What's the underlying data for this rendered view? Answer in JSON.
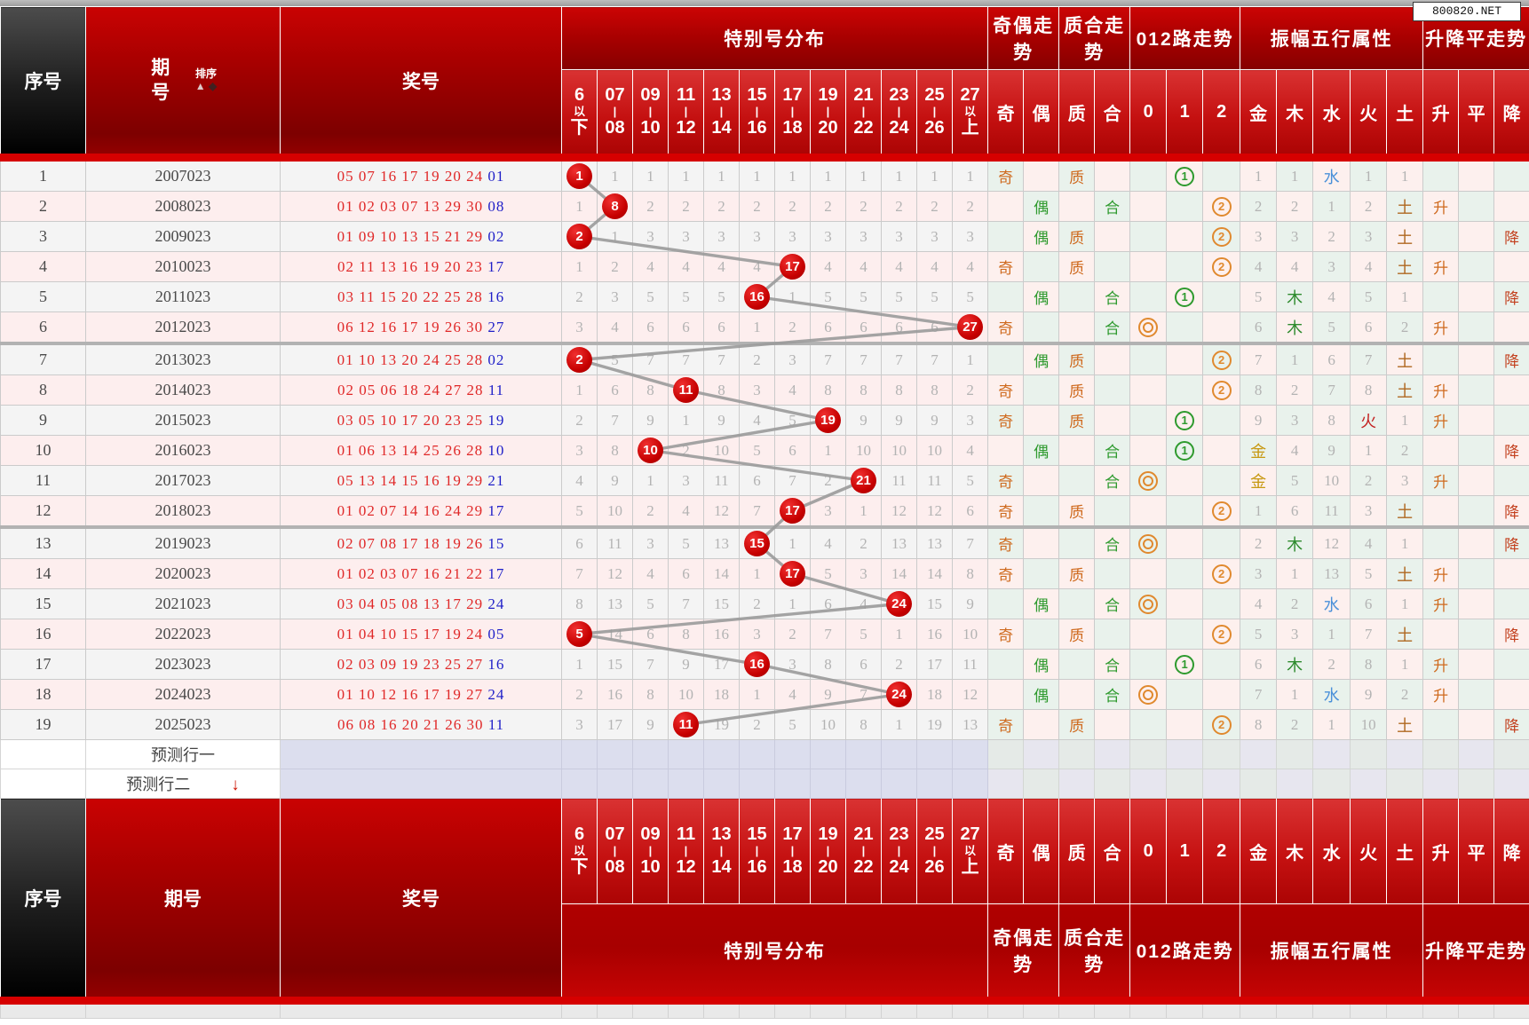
{
  "watermark": "800820.NET",
  "header": {
    "seq": "序号",
    "period": "期号",
    "prize": "奖号",
    "sort": "排序",
    "sort_up": "▲",
    "sort_down": "◆",
    "pred_arrow": "↓",
    "groups": {
      "dist": "特别号分布",
      "oe": "奇偶走势",
      "pc": "质合走势",
      "route": "012路走势",
      "five": "振幅五行属性",
      "ud": "升降平走势"
    },
    "dist_cols": [
      [
        "6",
        "以",
        "下"
      ],
      [
        "07",
        "|",
        "08"
      ],
      [
        "09",
        "|",
        "10"
      ],
      [
        "11",
        "|",
        "12"
      ],
      [
        "13",
        "|",
        "14"
      ],
      [
        "15",
        "|",
        "16"
      ],
      [
        "17",
        "|",
        "18"
      ],
      [
        "19",
        "|",
        "20"
      ],
      [
        "21",
        "|",
        "22"
      ],
      [
        "23",
        "|",
        "24"
      ],
      [
        "25",
        "|",
        "26"
      ],
      [
        "27",
        "以",
        "上"
      ]
    ],
    "trend_cols": [
      "奇",
      "偶",
      "质",
      "合",
      "0",
      "1",
      "2",
      "金",
      "木",
      "水",
      "火",
      "土",
      "升",
      "平",
      "降"
    ]
  },
  "pred_rows": [
    "预测行一",
    "预测行二"
  ],
  "colors": {
    "odd_row": "#f4f4f4",
    "even_row": "#fdeeee",
    "mint": "#e9f2ec",
    "pink": "#fdf0ee",
    "orange": "#cf6a1e",
    "green": "#2e9a2e",
    "down_red": "#c3401e",
    "gold": "#c79810",
    "wood": "#2e8b2e",
    "water": "#4a90d9",
    "fire": "#c32222",
    "earth": "#b06820",
    "ball_red": "#c60000",
    "special_blue": "#1f1fc8",
    "prize_red": "#e02828",
    "line_gray": "#9a9a9a"
  },
  "rows": [
    {
      "no": "1",
      "period": "2007023",
      "reds": "05 07 16 17 19 20 24",
      "special": "01",
      "ball": {
        "col": 0,
        "num": "1"
      },
      "miss": [
        "",
        "1",
        "1",
        "1",
        "1",
        "1",
        "1",
        "1",
        "1",
        "1",
        "1",
        "1"
      ],
      "oe": "奇",
      "pc": "质",
      "route": {
        "col": 1,
        "sym": "1"
      },
      "five": [
        "1",
        "1",
        "水",
        "1",
        "1"
      ],
      "ud": ""
    },
    {
      "no": "2",
      "period": "2008023",
      "reds": "01 02 03 07 13 29 30",
      "special": "08",
      "ball": {
        "col": 1,
        "num": "8"
      },
      "miss": [
        "1",
        "",
        "2",
        "2",
        "2",
        "2",
        "2",
        "2",
        "2",
        "2",
        "2",
        "2"
      ],
      "oe": "偶",
      "pc": "合",
      "route": {
        "col": 2,
        "sym": "2"
      },
      "five": [
        "2",
        "2",
        "1",
        "2",
        "土"
      ],
      "ud": "升"
    },
    {
      "no": "3",
      "period": "2009023",
      "reds": "01 09 10 13 15 21 29",
      "special": "02",
      "ball": {
        "col": 0,
        "num": "2"
      },
      "miss": [
        "",
        "1",
        "3",
        "3",
        "3",
        "3",
        "3",
        "3",
        "3",
        "3",
        "3",
        "3"
      ],
      "oe": "偶",
      "pc": "质",
      "route": {
        "col": 2,
        "sym": "2"
      },
      "five": [
        "3",
        "3",
        "2",
        "3",
        "土"
      ],
      "ud": "降"
    },
    {
      "no": "4",
      "period": "2010023",
      "reds": "02 11 13 16 19 20 23",
      "special": "17",
      "ball": {
        "col": 6,
        "num": "17"
      },
      "miss": [
        "1",
        "2",
        "4",
        "4",
        "4",
        "4",
        "",
        "4",
        "4",
        "4",
        "4",
        "4"
      ],
      "oe": "奇",
      "pc": "质",
      "route": {
        "col": 2,
        "sym": "2"
      },
      "five": [
        "4",
        "4",
        "3",
        "4",
        "土"
      ],
      "ud": "升"
    },
    {
      "no": "5",
      "period": "2011023",
      "reds": "03 11 15 20 22 25 28",
      "special": "16",
      "ball": {
        "col": 5,
        "num": "16"
      },
      "miss": [
        "2",
        "3",
        "5",
        "5",
        "5",
        "",
        "1",
        "5",
        "5",
        "5",
        "5",
        "5"
      ],
      "oe": "偶",
      "pc": "合",
      "route": {
        "col": 1,
        "sym": "1"
      },
      "five": [
        "5",
        "木",
        "4",
        "5",
        "1"
      ],
      "ud": "降"
    },
    {
      "no": "6",
      "period": "2012023",
      "reds": "06 12 16 17 19 26 30",
      "special": "27",
      "ball": {
        "col": 11,
        "num": "27"
      },
      "miss": [
        "3",
        "4",
        "6",
        "6",
        "6",
        "1",
        "2",
        "6",
        "6",
        "6",
        "6",
        ""
      ],
      "oe": "奇",
      "pc": "合",
      "route": {
        "col": 0,
        "sym": "0"
      },
      "five": [
        "6",
        "木",
        "5",
        "6",
        "2"
      ],
      "ud": "升"
    },
    {
      "no": "7",
      "period": "2013023",
      "reds": "01 10 13 20 24 25 28",
      "special": "02",
      "ball": {
        "col": 0,
        "num": "2"
      },
      "miss": [
        "",
        "5",
        "7",
        "7",
        "7",
        "2",
        "3",
        "7",
        "7",
        "7",
        "7",
        "1"
      ],
      "oe": "偶",
      "pc": "质",
      "route": {
        "col": 2,
        "sym": "2"
      },
      "five": [
        "7",
        "1",
        "6",
        "7",
        "土"
      ],
      "ud": "降"
    },
    {
      "no": "8",
      "period": "2014023",
      "reds": "02 05 06 18 24 27 28",
      "special": "11",
      "ball": {
        "col": 3,
        "num": "11"
      },
      "miss": [
        "1",
        "6",
        "8",
        "",
        "8",
        "3",
        "4",
        "8",
        "8",
        "8",
        "8",
        "2"
      ],
      "oe": "奇",
      "pc": "质",
      "route": {
        "col": 2,
        "sym": "2"
      },
      "five": [
        "8",
        "2",
        "7",
        "8",
        "土"
      ],
      "ud": "升"
    },
    {
      "no": "9",
      "period": "2015023",
      "reds": "03 05 10 17 20 23 25",
      "special": "19",
      "ball": {
        "col": 7,
        "num": "19"
      },
      "miss": [
        "2",
        "7",
        "9",
        "1",
        "9",
        "4",
        "5",
        "",
        "9",
        "9",
        "9",
        "3"
      ],
      "oe": "奇",
      "pc": "质",
      "route": {
        "col": 1,
        "sym": "1"
      },
      "five": [
        "9",
        "3",
        "8",
        "火",
        "1"
      ],
      "ud": "升"
    },
    {
      "no": "10",
      "period": "2016023",
      "reds": "01 06 13 14 25 26 28",
      "special": "10",
      "ball": {
        "col": 2,
        "num": "10"
      },
      "miss": [
        "3",
        "8",
        "",
        "2",
        "10",
        "5",
        "6",
        "1",
        "10",
        "10",
        "10",
        "4"
      ],
      "oe": "偶",
      "pc": "合",
      "route": {
        "col": 1,
        "sym": "1"
      },
      "five": [
        "金",
        "4",
        "9",
        "1",
        "2"
      ],
      "ud": "降"
    },
    {
      "no": "11",
      "period": "2017023",
      "reds": "05 13 14 15 16 19 29",
      "special": "21",
      "ball": {
        "col": 8,
        "num": "21"
      },
      "miss": [
        "4",
        "9",
        "1",
        "3",
        "11",
        "6",
        "7",
        "2",
        "",
        "11",
        "11",
        "5"
      ],
      "oe": "奇",
      "pc": "合",
      "route": {
        "col": 0,
        "sym": "0"
      },
      "five": [
        "金",
        "5",
        "10",
        "2",
        "3"
      ],
      "ud": "升"
    },
    {
      "no": "12",
      "period": "2018023",
      "reds": "01 02 07 14 16 24 29",
      "special": "17",
      "ball": {
        "col": 6,
        "num": "17"
      },
      "miss": [
        "5",
        "10",
        "2",
        "4",
        "12",
        "7",
        "",
        "3",
        "1",
        "12",
        "12",
        "6"
      ],
      "oe": "奇",
      "pc": "质",
      "route": {
        "col": 2,
        "sym": "2"
      },
      "five": [
        "1",
        "6",
        "11",
        "3",
        "土"
      ],
      "ud": "降"
    },
    {
      "no": "13",
      "period": "2019023",
      "reds": "02 07 08 17 18 19 26",
      "special": "15",
      "ball": {
        "col": 5,
        "num": "15"
      },
      "miss": [
        "6",
        "11",
        "3",
        "5",
        "13",
        "",
        "1",
        "4",
        "2",
        "13",
        "13",
        "7"
      ],
      "oe": "奇",
      "pc": "合",
      "route": {
        "col": 0,
        "sym": "0"
      },
      "five": [
        "2",
        "木",
        "12",
        "4",
        "1"
      ],
      "ud": "降"
    },
    {
      "no": "14",
      "period": "2020023",
      "reds": "01 02 03 07 16 21 22",
      "special": "17",
      "ball": {
        "col": 6,
        "num": "17"
      },
      "miss": [
        "7",
        "12",
        "4",
        "6",
        "14",
        "1",
        "",
        "5",
        "3",
        "14",
        "14",
        "8"
      ],
      "oe": "奇",
      "pc": "质",
      "route": {
        "col": 2,
        "sym": "2"
      },
      "five": [
        "3",
        "1",
        "13",
        "5",
        "土"
      ],
      "ud": "升"
    },
    {
      "no": "15",
      "period": "2021023",
      "reds": "03 04 05 08 13 17 29",
      "special": "24",
      "ball": {
        "col": 9,
        "num": "24"
      },
      "miss": [
        "8",
        "13",
        "5",
        "7",
        "15",
        "2",
        "1",
        "6",
        "4",
        "",
        "15",
        "9"
      ],
      "oe": "偶",
      "pc": "合",
      "route": {
        "col": 0,
        "sym": "0"
      },
      "five": [
        "4",
        "2",
        "水",
        "6",
        "1"
      ],
      "ud": "升"
    },
    {
      "no": "16",
      "period": "2022023",
      "reds": "01 04 10 15 17 19 24",
      "special": "05",
      "ball": {
        "col": 0,
        "num": "5"
      },
      "miss": [
        "",
        "14",
        "6",
        "8",
        "16",
        "3",
        "2",
        "7",
        "5",
        "1",
        "16",
        "10"
      ],
      "oe": "奇",
      "pc": "质",
      "route": {
        "col": 2,
        "sym": "2"
      },
      "five": [
        "5",
        "3",
        "1",
        "7",
        "土"
      ],
      "ud": "降"
    },
    {
      "no": "17",
      "period": "2023023",
      "reds": "02 03 09 19 23 25 27",
      "special": "16",
      "ball": {
        "col": 5,
        "num": "16"
      },
      "miss": [
        "1",
        "15",
        "7",
        "9",
        "17",
        "",
        "3",
        "8",
        "6",
        "2",
        "17",
        "11"
      ],
      "oe": "偶",
      "pc": "合",
      "route": {
        "col": 1,
        "sym": "1"
      },
      "five": [
        "6",
        "木",
        "2",
        "8",
        "1"
      ],
      "ud": "升"
    },
    {
      "no": "18",
      "period": "2024023",
      "reds": "01 10 12 16 17 19 27",
      "special": "24",
      "ball": {
        "col": 9,
        "num": "24"
      },
      "miss": [
        "2",
        "16",
        "8",
        "10",
        "18",
        "1",
        "4",
        "9",
        "7",
        "",
        "18",
        "12"
      ],
      "oe": "偶",
      "pc": "合",
      "route": {
        "col": 0,
        "sym": "0"
      },
      "five": [
        "7",
        "1",
        "水",
        "9",
        "2"
      ],
      "ud": "升"
    },
    {
      "no": "19",
      "period": "2025023",
      "reds": "06 08 16 20 21 26 30",
      "special": "11",
      "ball": {
        "col": 3,
        "num": "11"
      },
      "miss": [
        "3",
        "17",
        "9",
        "",
        "19",
        "2",
        "5",
        "10",
        "8",
        "1",
        "19",
        "13"
      ],
      "oe": "奇",
      "pc": "质",
      "route": {
        "col": 2,
        "sym": "2"
      },
      "five": [
        "8",
        "2",
        "1",
        "10",
        "土"
      ],
      "ud": "降"
    }
  ]
}
